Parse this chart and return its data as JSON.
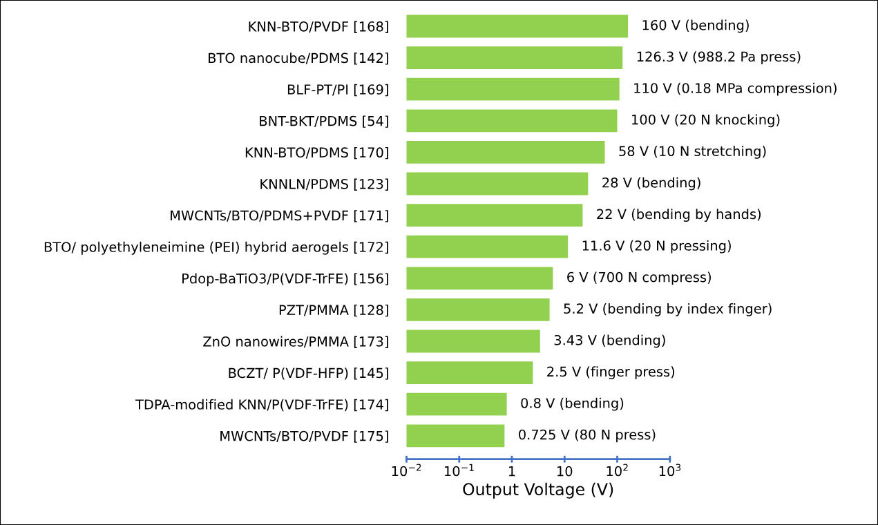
{
  "chart_data": {
    "type": "bar",
    "orientation": "horizontal",
    "xlabel": "Output Voltage (V)",
    "categories": [
      "KNN-BTO/PVDF [168]",
      "BTO nanocube/PDMS [142]",
      "BLF-PT/PI [169]",
      "BNT-BKT/PDMS [54]",
      "KNN-BTO/PDMS [170]",
      "KNNLN/PDMS [123]",
      "MWCNTs/BTO/PDMS+PVDF [171]",
      "BTO/ polyethyleneimine (PEI) hybrid aerogels [172]",
      "Pdop-BaTiO3/P(VDF-TrFE) [156]",
      "PZT/PMMA [128]",
      "ZnO nanowires/PMMA [173]",
      "BCZT/ P(VDF-HFP) [145]",
      "TDPA-modified KNN/P(VDF-TrFE) [174]",
      "MWCNTs/BTO/PVDF [175]"
    ],
    "values": [
      160,
      126.3,
      110,
      100,
      58,
      28,
      22,
      11.6,
      6,
      5.2,
      3.43,
      2.5,
      0.8,
      0.725
    ],
    "value_labels": [
      "160 V (bending)",
      "126.3 V (988.2 Pa press)",
      "110 V (0.18 MPa compression)",
      "100 V (20 N knocking)",
      "58 V (10 N stretching)",
      "28 V (bending)",
      "22 V (bending by hands)",
      "11.6 V (20 N pressing)",
      "6 V (700 N compress)",
      "5.2 V (bending by index finger)",
      "3.43 V (bending)",
      "2.5 V (finger press)",
      "0.8 V (bending)",
      "0.725 V (80 N press)"
    ],
    "color": "#92d050",
    "log": "x",
    "xlim": [
      0.01,
      1000
    ],
    "xticks": [
      {
        "value": 0.01,
        "label": "10$^{−2}$"
      },
      {
        "value": 0.1,
        "label": "10$^{−1}$"
      },
      1,
      10,
      {
        "value": 100,
        "label": "10$^{2}$"
      },
      {
        "value": 1000,
        "label": "10$^{3}$"
      }
    ],
    "grid": false,
    "legend": false
  }
}
